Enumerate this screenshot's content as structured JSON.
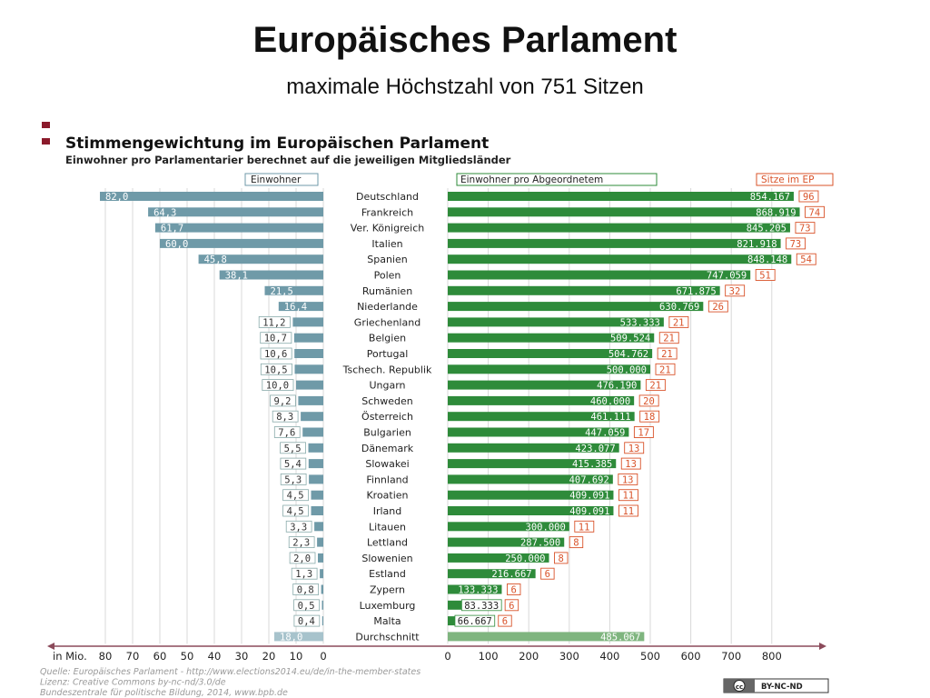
{
  "slide": {
    "title": "Europäisches Parlament",
    "subtitle": "maximale Höchstzahl von 751 Sitzen"
  },
  "colors": {
    "accent": "#8b1a2b",
    "population_bar": "#6f9aa8",
    "population_label_box": "#ffffff",
    "per_seat_bar": "#2e8b3a",
    "per_seat_average": "#7fb57f",
    "average_population_bar": "#a7c3cc",
    "seats_border": "#d9532a"
  },
  "chart_data": {
    "type": "bar",
    "title": "Stimmengewichtung im Europäischen Parlament",
    "subtitle": "Einwohner pro Parlamentarier berechnet auf die jeweiligen Mitgliedsländer",
    "column_headers": {
      "population": "Einwohner",
      "per_seat": "Einwohner pro Abgeordnetem",
      "seats": "Sitze im EP"
    },
    "categories": [
      "Deutschland",
      "Frankreich",
      "Ver. Königreich",
      "Italien",
      "Spanien",
      "Polen",
      "Rumänien",
      "Niederlande",
      "Griechenland",
      "Belgien",
      "Portugal",
      "Tschech. Republik",
      "Ungarn",
      "Schweden",
      "Österreich",
      "Bulgarien",
      "Dänemark",
      "Slowakei",
      "Finnland",
      "Kroatien",
      "Irland",
      "Litauen",
      "Lettland",
      "Slowenien",
      "Estland",
      "Zypern",
      "Luxemburg",
      "Malta",
      "Durchschnitt"
    ],
    "series": [
      {
        "name": "Einwohner",
        "values": [
          82.0,
          64.3,
          61.7,
          60.0,
          45.8,
          38.1,
          21.5,
          16.4,
          11.2,
          10.7,
          10.6,
          10.5,
          10.0,
          9.2,
          8.3,
          7.6,
          5.5,
          5.4,
          5.3,
          4.5,
          4.5,
          3.3,
          2.3,
          2.0,
          1.3,
          0.8,
          0.5,
          0.4,
          18.0
        ],
        "labels": [
          "82,0",
          "64,3",
          "61,7",
          "60,0",
          "45,8",
          "38,1",
          "21,5",
          "16,4",
          "11,2",
          "10,7",
          "10,6",
          "10,5",
          "10,0",
          "9,2",
          "8,3",
          "7,6",
          "5,5",
          "5,4",
          "5,3",
          "4,5",
          "4,5",
          "3,3",
          "2,3",
          "2,0",
          "1,3",
          "0,8",
          "0,5",
          "0,4",
          "18,0"
        ]
      },
      {
        "name": "Einwohner pro Abgeordnetem",
        "values": [
          854167,
          868919,
          845205,
          821918,
          848148,
          747059,
          671875,
          630769,
          533333,
          509524,
          504762,
          500000,
          476190,
          460000,
          461111,
          447059,
          423077,
          415385,
          407692,
          409091,
          409091,
          300000,
          287500,
          250000,
          216667,
          133333,
          83333,
          66667,
          485067
        ],
        "labels": [
          "854.167",
          "868.919",
          "845.205",
          "821.918",
          "848.148",
          "747.059",
          "671.875",
          "630.769",
          "533.333",
          "509.524",
          "504.762",
          "500.000",
          "476.190",
          "460.000",
          "461.111",
          "447.059",
          "423.077",
          "415.385",
          "407.692",
          "409.091",
          "409.091",
          "300.000",
          "287.500",
          "250.000",
          "216.667",
          "133.333",
          "83.333",
          "66.667",
          "485.067"
        ]
      },
      {
        "name": "Sitze im EP",
        "values": [
          96,
          74,
          73,
          73,
          54,
          51,
          32,
          26,
          21,
          21,
          21,
          21,
          21,
          20,
          18,
          17,
          13,
          13,
          13,
          11,
          11,
          11,
          8,
          8,
          6,
          6,
          6,
          6,
          null
        ],
        "labels": [
          "96",
          "74",
          "73",
          "73",
          "54",
          "51",
          "32",
          "26",
          "21",
          "21",
          "21",
          "21",
          "21",
          "20",
          "18",
          "17",
          "13",
          "13",
          "13",
          "11",
          "11",
          "11",
          "8",
          "8",
          "6",
          "6",
          "6",
          "6",
          ""
        ]
      }
    ],
    "left_axis": {
      "unit_label": "in Mio.",
      "ticks": [
        80,
        70,
        60,
        50,
        40,
        30,
        20,
        10,
        0
      ],
      "range": [
        0,
        85
      ]
    },
    "right_axis": {
      "unit_label": "",
      "ticks": [
        0,
        100,
        200,
        300,
        400,
        500,
        600,
        700,
        800
      ],
      "tick_unit": "thousand",
      "range": [
        0,
        900
      ]
    },
    "source_lines": [
      "Quelle: Europäisches Parlament - http://www.elections2014.eu/de/in-the-member-states",
      "Lizenz: Creative Commons by-nc-nd/3.0/de",
      "Bundeszentrale für politische Bildung, 2014, www.bpb.de"
    ],
    "license_badge": "BY-NC-ND",
    "license_icon": "cc-icon"
  }
}
